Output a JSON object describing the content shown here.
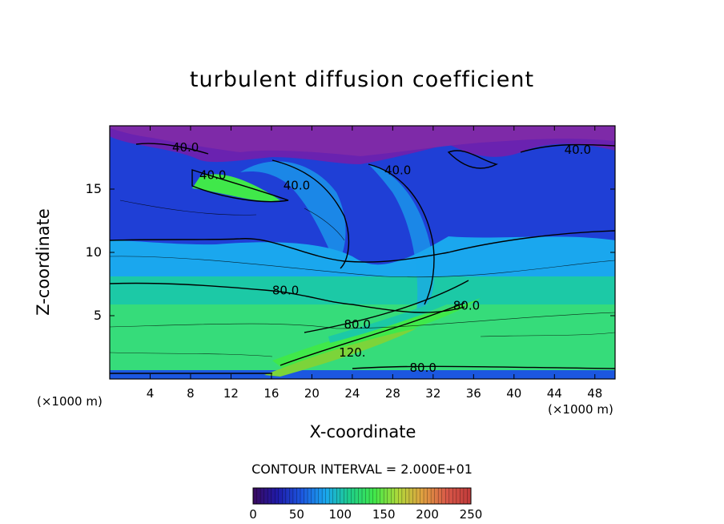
{
  "chart_data": {
    "type": "heatmap",
    "title": "turbulent diffusion coefficient",
    "xlabel": "X-coordinate",
    "ylabel": "Z-coordinate",
    "x_unit": "(×1000 m)",
    "z_unit": "(×1000 m)",
    "xlim": [
      0,
      50
    ],
    "ylim": [
      0,
      20
    ],
    "x_ticks": [
      4,
      8,
      12,
      16,
      20,
      24,
      28,
      32,
      36,
      40,
      44,
      48
    ],
    "y_ticks": [
      5,
      10,
      15
    ],
    "contour_interval_text": "CONTOUR INTERVAL = 2.000E+01",
    "contour_labels": [
      {
        "text": "40.0",
        "x": 7.5,
        "z": 18.3
      },
      {
        "text": "40.0",
        "x": 10.2,
        "z": 16.1
      },
      {
        "text": "40.0",
        "x": 18.5,
        "z": 15.3
      },
      {
        "text": "40.0",
        "x": 28.5,
        "z": 16.5
      },
      {
        "text": "40.0",
        "x": 46.3,
        "z": 18.1
      },
      {
        "text": "80.0",
        "x": 17.4,
        "z": 7.0
      },
      {
        "text": "80.0",
        "x": 24.5,
        "z": 4.3
      },
      {
        "text": "80.0",
        "x": 35.3,
        "z": 5.8
      },
      {
        "text": "80.0",
        "x": 31.0,
        "z": 0.9
      },
      {
        "text": "120.",
        "x": 24.0,
        "z": 2.1
      }
    ],
    "colorbar": {
      "min": 0,
      "max": 250,
      "ticks": [
        0,
        50,
        100,
        150,
        200,
        250
      ],
      "colors": [
        "#3a0a5e",
        "#1f1aa8",
        "#1c57e0",
        "#1aa7ee",
        "#1ecf8a",
        "#40e84a",
        "#b0d83a",
        "#e0a040",
        "#d85848",
        "#c03a3a"
      ]
    },
    "grid": false
  }
}
